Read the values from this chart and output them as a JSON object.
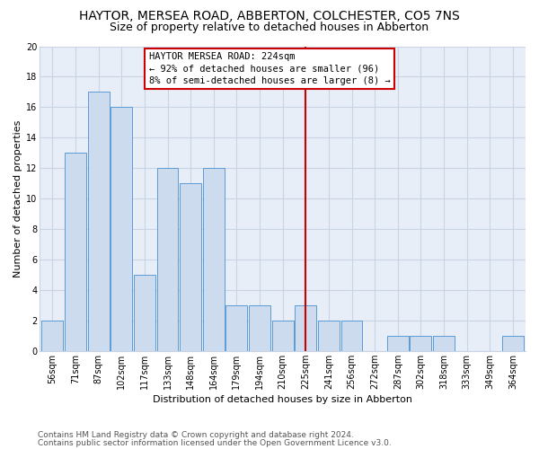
{
  "title": "HAYTOR, MERSEA ROAD, ABBERTON, COLCHESTER, CO5 7NS",
  "subtitle": "Size of property relative to detached houses in Abberton",
  "xlabel": "Distribution of detached houses by size in Abberton",
  "ylabel": "Number of detached properties",
  "categories": [
    "56sqm",
    "71sqm",
    "87sqm",
    "102sqm",
    "117sqm",
    "133sqm",
    "148sqm",
    "164sqm",
    "179sqm",
    "194sqm",
    "210sqm",
    "225sqm",
    "241sqm",
    "256sqm",
    "272sqm",
    "287sqm",
    "302sqm",
    "318sqm",
    "333sqm",
    "349sqm",
    "364sqm"
  ],
  "values": [
    2,
    13,
    17,
    16,
    5,
    12,
    11,
    12,
    3,
    3,
    2,
    3,
    2,
    2,
    0,
    1,
    1,
    1,
    0,
    0,
    1
  ],
  "bar_color": "#ccdcee",
  "bar_edge_color": "#5b9bd5",
  "vline_index": 11,
  "vline_color": "#cc0000",
  "annotation_title": "HAYTOR MERSEA ROAD: 224sqm",
  "annotation_line1": "← 92% of detached houses are smaller (96)",
  "annotation_line2": "8% of semi-detached houses are larger (8) →",
  "annotation_box_edgecolor": "#cc0000",
  "ylim": [
    0,
    20
  ],
  "yticks": [
    0,
    2,
    4,
    6,
    8,
    10,
    12,
    14,
    16,
    18,
    20
  ],
  "fig_bg": "#ffffff",
  "plot_bg": "#e8eef8",
  "grid_color": "#c8d4e4",
  "footer_line1": "Contains HM Land Registry data © Crown copyright and database right 2024.",
  "footer_line2": "Contains public sector information licensed under the Open Government Licence v3.0.",
  "title_fontsize": 10,
  "subtitle_fontsize": 9,
  "axis_label_fontsize": 8,
  "tick_fontsize": 7,
  "annotation_fontsize": 7.5,
  "footer_fontsize": 6.5
}
